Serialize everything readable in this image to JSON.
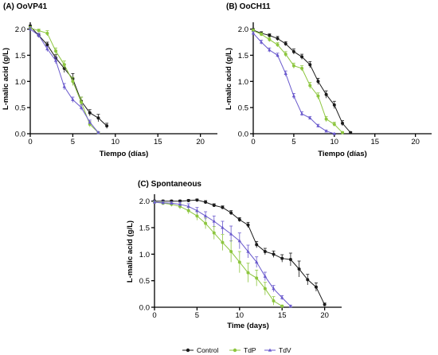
{
  "colors": {
    "Control": "#1a1a1a",
    "TdP": "#8dc63f",
    "TdV": "#6a5acd"
  },
  "legend": {
    "placement": "bottom-center",
    "items": [
      {
        "label": "Control",
        "marker": "circle"
      },
      {
        "label": "TdP",
        "marker": "circle"
      },
      {
        "label": "TdV",
        "marker": "triangle"
      }
    ]
  },
  "chart_data": [
    {
      "id": "A",
      "type": "line",
      "title": "(A) OoVP41",
      "xlabel": "Tiempo (días)",
      "ylabel": "L-malic acid (g/L)",
      "xlim": [
        0,
        22
      ],
      "ylim": [
        0,
        2.1
      ],
      "xticks": [
        0,
        5,
        10,
        15,
        20
      ],
      "yticks": [
        0.0,
        0.5,
        1.0,
        1.5,
        2.0
      ],
      "series": [
        {
          "name": "Control",
          "x": [
            0,
            1,
            2,
            3,
            4,
            5,
            6,
            7,
            8,
            9
          ],
          "y": [
            2.05,
            1.88,
            1.7,
            1.45,
            1.25,
            1.05,
            0.62,
            0.4,
            0.3,
            0.15
          ],
          "err": [
            0.03,
            0.04,
            0.05,
            0.06,
            0.08,
            0.1,
            0.08,
            0.06,
            0.07,
            0.05
          ]
        },
        {
          "name": "TdP",
          "x": [
            0,
            1,
            2,
            3,
            4,
            5,
            6,
            7,
            8
          ],
          "y": [
            2.02,
            1.97,
            1.92,
            1.58,
            1.32,
            1.0,
            0.6,
            0.18,
            0.02
          ],
          "err": [
            0.03,
            0.03,
            0.05,
            0.06,
            0.07,
            0.08,
            0.1,
            0.05,
            0.02
          ]
        },
        {
          "name": "TdV",
          "x": [
            0,
            1,
            2,
            3,
            4,
            5,
            6,
            7,
            8
          ],
          "y": [
            2.0,
            1.88,
            1.62,
            1.4,
            0.9,
            0.65,
            0.5,
            0.22,
            0.02
          ],
          "err": [
            0.03,
            0.04,
            0.05,
            0.06,
            0.06,
            0.05,
            0.05,
            0.04,
            0.02
          ]
        }
      ]
    },
    {
      "id": "B",
      "type": "line",
      "title": "(B) OoCH11",
      "xlabel": "Tiempo (días)",
      "ylabel": "L-malic acid (g/L)",
      "xlim": [
        0,
        22
      ],
      "ylim": [
        0,
        2.1
      ],
      "xticks": [
        0,
        5,
        10,
        15,
        20
      ],
      "yticks": [
        0.0,
        0.5,
        1.0,
        1.5,
        2.0
      ],
      "series": [
        {
          "name": "Control",
          "x": [
            0,
            1,
            2,
            3,
            4,
            5,
            6,
            7,
            8,
            9,
            10,
            11,
            12
          ],
          "y": [
            1.98,
            1.92,
            1.88,
            1.82,
            1.72,
            1.57,
            1.47,
            1.32,
            1.0,
            0.75,
            0.55,
            0.2,
            0.02
          ],
          "err": [
            0.03,
            0.03,
            0.03,
            0.04,
            0.04,
            0.05,
            0.05,
            0.06,
            0.06,
            0.07,
            0.07,
            0.05,
            0.02
          ]
        },
        {
          "name": "TdP",
          "x": [
            0,
            1,
            2,
            3,
            4,
            5,
            6,
            7,
            8,
            9,
            10,
            11
          ],
          "y": [
            1.97,
            1.9,
            1.8,
            1.7,
            1.52,
            1.3,
            1.25,
            0.92,
            0.72,
            0.28,
            0.18,
            0.02
          ],
          "err": [
            0.03,
            0.03,
            0.04,
            0.04,
            0.05,
            0.05,
            0.05,
            0.06,
            0.06,
            0.05,
            0.04,
            0.02
          ]
        },
        {
          "name": "TdV",
          "x": [
            0,
            1,
            2,
            3,
            4,
            5,
            6,
            7,
            8,
            9,
            10
          ],
          "y": [
            1.92,
            1.75,
            1.6,
            1.5,
            1.15,
            0.72,
            0.38,
            0.3,
            0.15,
            0.05,
            0.0
          ],
          "err": [
            0.03,
            0.04,
            0.04,
            0.04,
            0.05,
            0.05,
            0.04,
            0.03,
            0.03,
            0.02,
            0.01
          ]
        }
      ]
    },
    {
      "id": "C",
      "type": "line",
      "title": "(C) Spontaneous",
      "xlabel": "Time (days)",
      "ylabel": "L-malic acid (g/L)",
      "xlim": [
        0,
        22
      ],
      "ylim": [
        0,
        2.1
      ],
      "xticks": [
        0,
        5,
        10,
        15,
        20
      ],
      "yticks": [
        0.0,
        0.5,
        1.0,
        1.5,
        2.0
      ],
      "series": [
        {
          "name": "Control",
          "x": [
            0,
            1,
            2,
            3,
            4,
            5,
            6,
            7,
            8,
            9,
            10,
            11,
            12,
            13,
            14,
            15,
            16,
            17,
            18,
            19,
            20
          ],
          "y": [
            2.0,
            2.0,
            2.0,
            2.0,
            2.01,
            2.02,
            1.98,
            1.92,
            1.88,
            1.78,
            1.65,
            1.55,
            1.18,
            1.05,
            1.0,
            0.92,
            0.9,
            0.72,
            0.52,
            0.38,
            0.05
          ],
          "err": [
            0.02,
            0.02,
            0.02,
            0.02,
            0.02,
            0.02,
            0.03,
            0.03,
            0.03,
            0.04,
            0.04,
            0.05,
            0.06,
            0.06,
            0.06,
            0.07,
            0.12,
            0.15,
            0.1,
            0.08,
            0.03
          ]
        },
        {
          "name": "TdP",
          "x": [
            0,
            1,
            2,
            3,
            4,
            5,
            6,
            7,
            8,
            9,
            10,
            11,
            12,
            13,
            14,
            15
          ],
          "y": [
            1.98,
            1.96,
            1.94,
            1.9,
            1.82,
            1.72,
            1.58,
            1.4,
            1.22,
            1.05,
            0.85,
            0.65,
            0.55,
            0.35,
            0.12,
            0.02
          ],
          "err": [
            0.03,
            0.03,
            0.04,
            0.05,
            0.06,
            0.08,
            0.1,
            0.12,
            0.15,
            0.2,
            0.2,
            0.18,
            0.15,
            0.12,
            0.08,
            0.02
          ]
        },
        {
          "name": "TdV",
          "x": [
            0,
            1,
            2,
            3,
            4,
            5,
            6,
            7,
            8,
            9,
            10,
            11,
            12,
            13,
            14,
            15,
            16
          ],
          "y": [
            1.98,
            1.97,
            1.96,
            1.94,
            1.9,
            1.82,
            1.72,
            1.62,
            1.5,
            1.38,
            1.25,
            1.05,
            0.85,
            0.58,
            0.35,
            0.18,
            0.02
          ],
          "err": [
            0.03,
            0.03,
            0.03,
            0.04,
            0.05,
            0.06,
            0.08,
            0.1,
            0.12,
            0.15,
            0.15,
            0.12,
            0.1,
            0.08,
            0.06,
            0.04,
            0.02
          ]
        }
      ]
    }
  ]
}
